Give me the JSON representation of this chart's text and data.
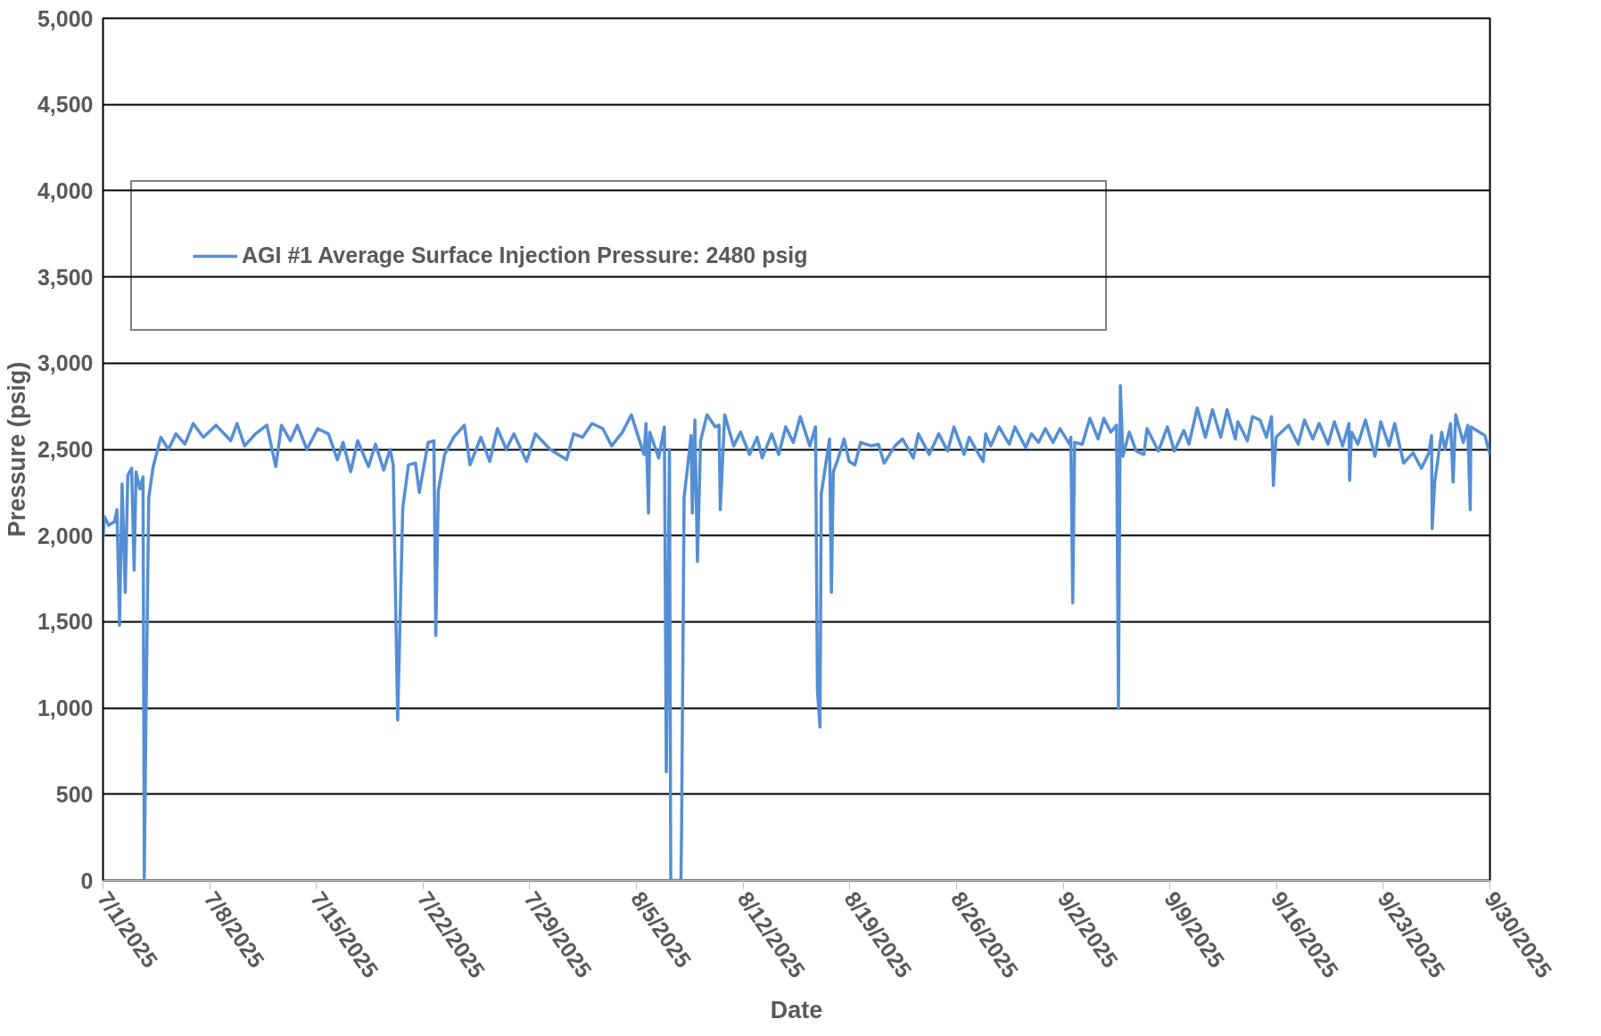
{
  "chart_data": {
    "type": "line",
    "xlabel": "Date",
    "ylabel": "Pressure (psig)",
    "xlim": [
      "2025-07-01",
      "2025-09-30"
    ],
    "xticks": [
      {
        "value": "2025-07-01",
        "label": "7/1/2025"
      },
      {
        "value": "2025-07-08",
        "label": "7/8/2025"
      },
      {
        "value": "2025-07-15",
        "label": "7/15/2025"
      },
      {
        "value": "2025-07-22",
        "label": "7/22/2025"
      },
      {
        "value": "2025-07-29",
        "label": "7/29/2025"
      },
      {
        "value": "2025-08-05",
        "label": "8/5/2025"
      },
      {
        "value": "2025-08-12",
        "label": "8/12/2025"
      },
      {
        "value": "2025-08-19",
        "label": "8/19/2025"
      },
      {
        "value": "2025-08-26",
        "label": "8/26/2025"
      },
      {
        "value": "2025-09-02",
        "label": "9/2/2025"
      },
      {
        "value": "2025-09-09",
        "label": "9/9/2025"
      },
      {
        "value": "2025-09-16",
        "label": "9/16/2025"
      },
      {
        "value": "2025-09-23",
        "label": "9/23/2025"
      },
      {
        "value": "2025-09-30",
        "label": "9/30/2025"
      }
    ],
    "ylim": [
      0,
      5000
    ],
    "yticks": [
      0,
      500,
      {
        "value": 1000,
        "label": "1,000"
      },
      {
        "value": 1500,
        "label": "1,500"
      },
      {
        "value": 2000,
        "label": "2,000"
      },
      {
        "value": 2500,
        "label": "2,500"
      },
      {
        "value": 3000,
        "label": "3,000"
      },
      {
        "value": 3500,
        "label": "3,500"
      },
      {
        "value": 4000,
        "label": "4,000"
      },
      {
        "value": 4500,
        "label": "4,500"
      },
      {
        "value": 5000,
        "label": "5,000"
      }
    ],
    "grid": "y",
    "legend": "top left",
    "marker": "none",
    "line_style": "solid",
    "series": [
      {
        "name": "AGI #1 Average Surface Injection Pressure: 2480 psig",
        "color": "#558ed5",
        "x": [
          "2025-07-01T00:00",
          "2025-07-01T02:00",
          "2025-07-01T09:00",
          "2025-07-01T18:00",
          "2025-07-01T22:00",
          "2025-07-02T02:00",
          "2025-07-02T06:00",
          "2025-07-02T11:00",
          "2025-07-02T15:00",
          "2025-07-02T21:00",
          "2025-07-03T01:00",
          "2025-07-03T04:00",
          "2025-07-03T10:00",
          "2025-07-03T15:00",
          "2025-07-03T17:00",
          "2025-07-03T19:00",
          "2025-07-04T00:00",
          "2025-07-04T07:00",
          "2025-07-04T19:00",
          "2025-07-05T07:00",
          "2025-07-05T19:00",
          "2025-07-06T09:00",
          "2025-07-06T22:00",
          "2025-07-07T14:00",
          "2025-07-08T10:00",
          "2025-07-09T09:00",
          "2025-07-09T19:00",
          "2025-07-10T07:00",
          "2025-07-11T00:00",
          "2025-07-11T18:00",
          "2025-07-12T08:00",
          "2025-07-12T17:00",
          "2025-07-13T07:00",
          "2025-07-13T18:00",
          "2025-07-14T09:00",
          "2025-07-15T02:00",
          "2025-07-15T19:00",
          "2025-07-16T09:00",
          "2025-07-16T18:00",
          "2025-07-17T06:00",
          "2025-07-17T17:00",
          "2025-07-18T10:00",
          "2025-07-18T21:00",
          "2025-07-19T10:00",
          "2025-07-19T20:00",
          "2025-07-20T01:00",
          "2025-07-20T08:00",
          "2025-07-20T16:00",
          "2025-07-21T01:00",
          "2025-07-21T12:00",
          "2025-07-21T18:00",
          "2025-07-22T08:00",
          "2025-07-22T17:00",
          "2025-07-22T20:00",
          "2025-07-23T00:00",
          "2025-07-23T10:00",
          "2025-07-24T00:00",
          "2025-07-24T17:00",
          "2025-07-25T02:00",
          "2025-07-25T19:00",
          "2025-07-26T09:00",
          "2025-07-26T21:00",
          "2025-07-27T11:00",
          "2025-07-27T23:00",
          "2025-07-28T19:00",
          "2025-07-29T09:00",
          "2025-07-30T08:00",
          "2025-07-31T10:00",
          "2025-07-31T21:00",
          "2025-08-01T11:00",
          "2025-08-02T02:00",
          "2025-08-02T19:00",
          "2025-08-03T09:00",
          "2025-08-04T02:00",
          "2025-08-04T16:00",
          "2025-08-05T04:00",
          "2025-08-05T12:00",
          "2025-08-05T15:00",
          "2025-08-05T19:00",
          "2025-08-05T21:00",
          "2025-08-06T11:00",
          "2025-08-06T20:00",
          "2025-08-06T23:00",
          "2025-08-07T04:00",
          "2025-08-07T06:00",
          "2025-08-07T22:00",
          "2025-08-07T23:00",
          "2025-08-08T03:00",
          "2025-08-08T14:00",
          "2025-08-08T16:00",
          "2025-08-08T20:00",
          "2025-08-09T00:00",
          "2025-08-09T05:00",
          "2025-08-09T15:00",
          "2025-08-10T04:00",
          "2025-08-10T10:00",
          "2025-08-10T12:00",
          "2025-08-10T19:00",
          "2025-08-11T09:00",
          "2025-08-11T20:00",
          "2025-08-12T10:00",
          "2025-08-12T22:00",
          "2025-08-13T06:00",
          "2025-08-13T21:00",
          "2025-08-14T08:00",
          "2025-08-14T19:00",
          "2025-08-15T07:00",
          "2025-08-15T18:00",
          "2025-08-16T09:00",
          "2025-08-16T18:00",
          "2025-08-16T21:00",
          "2025-08-17T01:00",
          "2025-08-17T03:00",
          "2025-08-17T16:00",
          "2025-08-17T19:00",
          "2025-08-17T22:00",
          "2025-08-18T05:00",
          "2025-08-18T15:00",
          "2025-08-18T23:00",
          "2025-08-19T08:00",
          "2025-08-19T17:00",
          "2025-08-20T10:00",
          "2025-08-20T21:00",
          "2025-08-21T06:00",
          "2025-08-21T23:00",
          "2025-08-22T11:00",
          "2025-08-23T04:00",
          "2025-08-23T12:00",
          "2025-08-24T05:00",
          "2025-08-24T20:00",
          "2025-08-25T10:00",
          "2025-08-25T20:00",
          "2025-08-26T12:00",
          "2025-08-26T20:00",
          "2025-08-27T08:00",
          "2025-08-27T18:00",
          "2025-08-27T22:00",
          "2025-08-28T06:00",
          "2025-08-28T19:00",
          "2025-08-29T11:00",
          "2025-08-29T20:00",
          "2025-08-30T13:00",
          "2025-08-30T22:00",
          "2025-08-31T09:00",
          "2025-08-31T20:00",
          "2025-09-01T08:00",
          "2025-09-01T19:00",
          "2025-09-02T10:00",
          "2025-09-02T12:00",
          "2025-09-02T15:00",
          "2025-09-02T18:00",
          "2025-09-03T06:00",
          "2025-09-03T18:00",
          "2025-09-04T07:00",
          "2025-09-04T16:00",
          "2025-09-05T03:00",
          "2025-09-05T12:00",
          "2025-09-05T15:00",
          "2025-09-05T18:00",
          "2025-09-05T22:00",
          "2025-09-06T08:00",
          "2025-09-06T19:00",
          "2025-09-07T07:00",
          "2025-09-07T12:00",
          "2025-09-08T06:00",
          "2025-09-08T20:00",
          "2025-09-09T07:00",
          "2025-09-09T22:00",
          "2025-09-10T06:00",
          "2025-09-10T19:00",
          "2025-09-11T08:00",
          "2025-09-11T19:00",
          "2025-09-12T08:00",
          "2025-09-12T18:00",
          "2025-09-13T07:00",
          "2025-09-13T11:00",
          "2025-09-14T02:00",
          "2025-09-14T10:00",
          "2025-09-14T22:00",
          "2025-09-15T08:00",
          "2025-09-15T16:00",
          "2025-09-15T19:00",
          "2025-09-15T23:00",
          "2025-09-16T19:00",
          "2025-09-17T10:00",
          "2025-09-17T20:00",
          "2025-09-18T09:00",
          "2025-09-18T19:00",
          "2025-09-19T09:00",
          "2025-09-19T19:00",
          "2025-09-20T08:00",
          "2025-09-20T18:00",
          "2025-09-20T19:00",
          "2025-09-20T22:00",
          "2025-09-21T08:00",
          "2025-09-21T20:00",
          "2025-09-22T11:00",
          "2025-09-22T20:00",
          "2025-09-23T09:00",
          "2025-09-23T18:00",
          "2025-09-24T08:00",
          "2025-09-24T23:00",
          "2025-09-25T12:00",
          "2025-09-26T00:00",
          "2025-09-26T04:00",
          "2025-09-26T05:00",
          "2025-09-26T09:00",
          "2025-09-26T20:00",
          "2025-09-27T01:00",
          "2025-09-27T10:00",
          "2025-09-27T14:00",
          "2025-09-27T18:00",
          "2025-09-28T06:00",
          "2025-09-28T13:00",
          "2025-09-28T17:00",
          "2025-09-28T18:00",
          "2025-09-29T16:00",
          "2025-09-30T00:00"
        ],
        "values": [
          1970,
          2110,
          2060,
          2080,
          2150,
          1480,
          2300,
          1670,
          2350,
          2390,
          1800,
          2370,
          2270,
          2340,
          0,
          730,
          2220,
          2400,
          2570,
          2500,
          2590,
          2530,
          2650,
          2570,
          2640,
          2550,
          2650,
          2520,
          2590,
          2640,
          2400,
          2640,
          2550,
          2640,
          2500,
          2620,
          2590,
          2440,
          2540,
          2370,
          2550,
          2400,
          2530,
          2380,
          2500,
          2410,
          930,
          2160,
          2410,
          2420,
          2250,
          2540,
          2550,
          1420,
          2260,
          2470,
          2570,
          2640,
          2410,
          2570,
          2430,
          2620,
          2500,
          2590,
          2430,
          2590,
          2500,
          2440,
          2590,
          2570,
          2650,
          2620,
          2520,
          2600,
          2700,
          2560,
          2470,
          2650,
          2130,
          2600,
          2450,
          2630,
          630,
          2500,
          0,
          0,
          260,
          2220,
          2580,
          2130,
          2670,
          1850,
          2550,
          2700,
          2630,
          2640,
          2150,
          2700,
          2520,
          2600,
          2470,
          2570,
          2450,
          2590,
          2470,
          2630,
          2540,
          2690,
          2520,
          2630,
          1100,
          890,
          2240,
          2560,
          1670,
          2370,
          2440,
          2560,
          2430,
          2410,
          2540,
          2520,
          2530,
          2420,
          2520,
          2560,
          2450,
          2590,
          2470,
          2590,
          2490,
          2630,
          2470,
          2570,
          2490,
          2430,
          2590,
          2520,
          2630,
          2530,
          2630,
          2510,
          2590,
          2540,
          2620,
          2540,
          2620,
          2530,
          2570,
          1610,
          2540,
          2530,
          2680,
          2560,
          2680,
          2600,
          2640,
          1000,
          2870,
          2460,
          2600,
          2490,
          2470,
          2620,
          2490,
          2630,
          2490,
          2610,
          2530,
          2740,
          2570,
          2730,
          2570,
          2730,
          2560,
          2660,
          2550,
          2690,
          2670,
          2570,
          2690,
          2290,
          2570,
          2640,
          2530,
          2670,
          2560,
          2650,
          2530,
          2660,
          2520,
          2650,
          2320,
          2600,
          2530,
          2670,
          2460,
          2660,
          2520,
          2650,
          2420,
          2480,
          2390,
          2480,
          2580,
          2040,
          2310,
          2600,
          2500,
          2650,
          2310,
          2700,
          2540,
          2640,
          2150,
          2630,
          2580,
          2470
        ]
      }
    ]
  }
}
